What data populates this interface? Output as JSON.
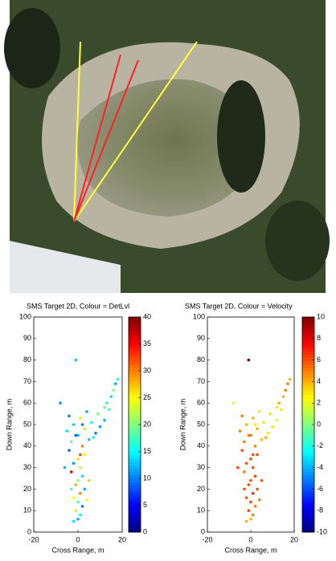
{
  "chart_data": [
    {
      "type": "scatter",
      "title": "SMS Target 2D, Colour = DetLvl",
      "xlabel": "Cross Range, m",
      "ylabel": "Down Range, m",
      "xlim": [
        -20,
        20
      ],
      "xticks": [
        -20,
        0,
        20
      ],
      "ylim": [
        0,
        100
      ],
      "yticks": [
        0,
        10,
        20,
        30,
        40,
        50,
        60,
        70,
        80,
        90,
        100
      ],
      "colormap": "jet",
      "clim": [
        0,
        40
      ],
      "cticks": [
        0,
        5,
        10,
        15,
        20,
        25,
        30,
        35,
        40
      ],
      "x": [
        0,
        1,
        -1,
        2,
        0,
        -2,
        1,
        3,
        -1,
        0,
        2,
        -3,
        1,
        -2,
        0,
        3,
        -4,
        2,
        -3,
        5,
        0,
        8,
        -5,
        3,
        10,
        -2,
        6,
        12,
        1,
        -4,
        9,
        4,
        14,
        -1,
        7,
        13,
        15,
        16,
        17,
        18,
        12,
        -1,
        -8,
        -6,
        4,
        -2,
        1,
        -3,
        5,
        2
      ],
      "y": [
        6,
        8,
        10,
        12,
        14,
        16,
        18,
        20,
        22,
        24,
        26,
        28,
        30,
        32,
        34,
        36,
        38,
        40,
        42,
        43,
        45,
        46,
        47,
        48,
        49,
        50,
        51,
        52,
        53,
        54,
        55,
        56,
        57,
        45,
        44,
        60,
        63,
        66,
        69,
        71,
        58,
        80,
        60,
        30,
        15,
        5,
        36,
        20,
        24,
        50
      ],
      "c": [
        12,
        15,
        22,
        10,
        18,
        25,
        30,
        12,
        28,
        20,
        14,
        35,
        22,
        11,
        26,
        24,
        9,
        30,
        19,
        13,
        12,
        10,
        14,
        22,
        11,
        13,
        16,
        12,
        24,
        10,
        20,
        12,
        18,
        9,
        15,
        17,
        14,
        20,
        12,
        16,
        19,
        13,
        11,
        12,
        25,
        14,
        32,
        18,
        27,
        10
      ]
    },
    {
      "type": "scatter",
      "title": "SMS Target 2D, Colour = Velocity",
      "xlabel": "Cross Range, m",
      "ylabel": "Down Range, m",
      "xlim": [
        -20,
        20
      ],
      "xticks": [
        -20,
        0,
        20
      ],
      "ylim": [
        0,
        100
      ],
      "yticks": [
        0,
        10,
        20,
        30,
        40,
        50,
        60,
        70,
        80,
        90,
        100
      ],
      "colormap": "jet",
      "clim": [
        -10,
        10
      ],
      "cticks": [
        -10,
        -8,
        -6,
        -4,
        -2,
        0,
        2,
        4,
        6,
        8,
        10
      ],
      "x": [
        0,
        1,
        -1,
        2,
        0,
        -2,
        1,
        3,
        -1,
        0,
        2,
        -3,
        1,
        -2,
        0,
        3,
        -4,
        2,
        -3,
        5,
        0,
        8,
        -5,
        3,
        10,
        -2,
        6,
        12,
        1,
        -4,
        9,
        4,
        14,
        -1,
        7,
        13,
        15,
        16,
        17,
        18,
        12,
        -1,
        -8,
        -6,
        4,
        -2,
        1,
        -3,
        5,
        2
      ],
      "y": [
        6,
        8,
        10,
        12,
        14,
        16,
        18,
        20,
        22,
        24,
        26,
        28,
        30,
        32,
        34,
        36,
        38,
        40,
        42,
        43,
        45,
        46,
        47,
        48,
        49,
        50,
        51,
        52,
        53,
        54,
        55,
        56,
        57,
        45,
        44,
        60,
        63,
        66,
        69,
        71,
        58,
        80,
        60,
        30,
        15,
        5,
        36,
        20,
        24,
        50
      ],
      "c": [
        4,
        5,
        6,
        5,
        6,
        6,
        7,
        6,
        6,
        6,
        6,
        5,
        6,
        6,
        6,
        6,
        6,
        5,
        5,
        4,
        5,
        3,
        5,
        4,
        3,
        4,
        3,
        2,
        4,
        5,
        3,
        3,
        3,
        5,
        4,
        4,
        4,
        5,
        5,
        4,
        3,
        10,
        2,
        6,
        5,
        4,
        6,
        6,
        6,
        3
      ]
    }
  ]
}
